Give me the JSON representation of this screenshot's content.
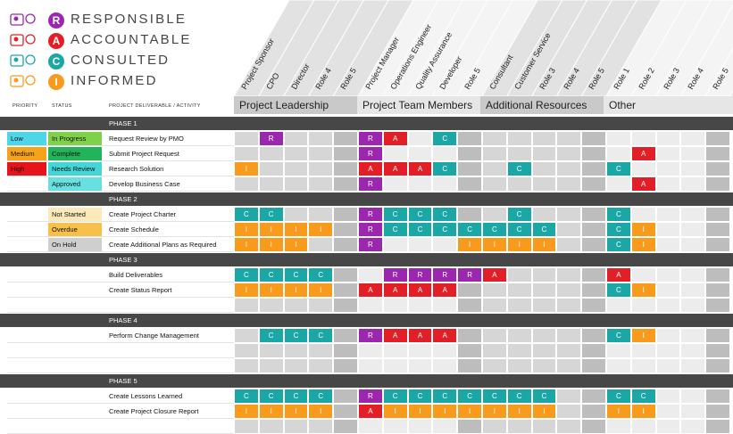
{
  "legend": [
    {
      "letter": "R",
      "word": "RESPONSIBLE",
      "color": "#9b27af",
      "icon": "people-icon"
    },
    {
      "letter": "A",
      "word": "ACCOUNTABLE",
      "color": "#e21f26",
      "icon": "magnify-person-icon"
    },
    {
      "letter": "C",
      "word": "CONSULTED",
      "color": "#1ba7a5",
      "icon": "chat-people-icon"
    },
    {
      "letter": "I",
      "word": "INFORMED",
      "color": "#f89a1c",
      "icon": "info-people-icon"
    }
  ],
  "columns_header": {
    "priority": "PRIORITY",
    "status": "STATUS",
    "deliverable": "PROJECT DELIVERABLE / ACTIVITY"
  },
  "roles": [
    "Project Sponsor",
    "CPO",
    "Director",
    "Role 4",
    "Role 5",
    "Project Manager",
    "Operations Engineer",
    "Quality Assurance",
    "Developer",
    "Role 5",
    "Consultant",
    "Customer Service",
    "Role 3",
    "Role 4",
    "Role 5",
    "Role 1",
    "Role 2",
    "Role 3",
    "Role 4",
    "Role 5"
  ],
  "groups": [
    {
      "label": "Project Leadership"
    },
    {
      "label": "Project Team Members"
    },
    {
      "label": "Additional Resources"
    },
    {
      "label": "Other"
    }
  ],
  "priority_legend": [
    {
      "label": "Low",
      "color": "#4fd5e8"
    },
    {
      "label": "Medium",
      "color": "#f7a21b"
    },
    {
      "label": "High",
      "color": "#e8141c"
    }
  ],
  "status_legend": [
    {
      "label": "In Progress",
      "color": "#7fd14a"
    },
    {
      "label": "Complete",
      "color": "#22b45a"
    },
    {
      "label": "Needs Review",
      "color": "#44d6d6"
    },
    {
      "label": "Approved",
      "color": "#66e0e0"
    },
    {
      "label": "Not Started",
      "color": "#fbe9b9"
    },
    {
      "label": "Overdue",
      "color": "#f7c04a"
    },
    {
      "label": "On Hold",
      "color": "#cfcfcf"
    }
  ],
  "phases": [
    "PHASE 1",
    "PHASE 2",
    "PHASE 3",
    "PHASE 4",
    "PHASE 5"
  ],
  "tasks": [
    {
      "name": "Request Review by PMO",
      "cells": "-R------R A---C------------"
    },
    {
      "name": "Submit Project Request",
      "cells": ""
    },
    {
      "name": "Research Solution",
      "cells": ""
    },
    {
      "name": "Develop Business Case",
      "cells": ""
    },
    {
      "name": "Create Project Charter",
      "cells": ""
    },
    {
      "name": "Create Schedule",
      "cells": ""
    },
    {
      "name": "Create Additional Plans as Required",
      "cells": ""
    },
    {
      "name": "Build Deliverables",
      "cells": ""
    },
    {
      "name": "Create Status Report",
      "cells": ""
    },
    {
      "name": "Perform Change Management",
      "cells": ""
    },
    {
      "name": "Create Lessons Learned",
      "cells": ""
    },
    {
      "name": "Create Project Closure Report",
      "cells": ""
    }
  ],
  "colors": {
    "R": "#9b27af",
    "A": "#e21f26",
    "C": "#1ba7a5",
    "I": "#f89a1c",
    "phase_bar": "#474747",
    "grid_gray": "#d2d2d2",
    "grid_light": "#e9e9e9"
  }
}
